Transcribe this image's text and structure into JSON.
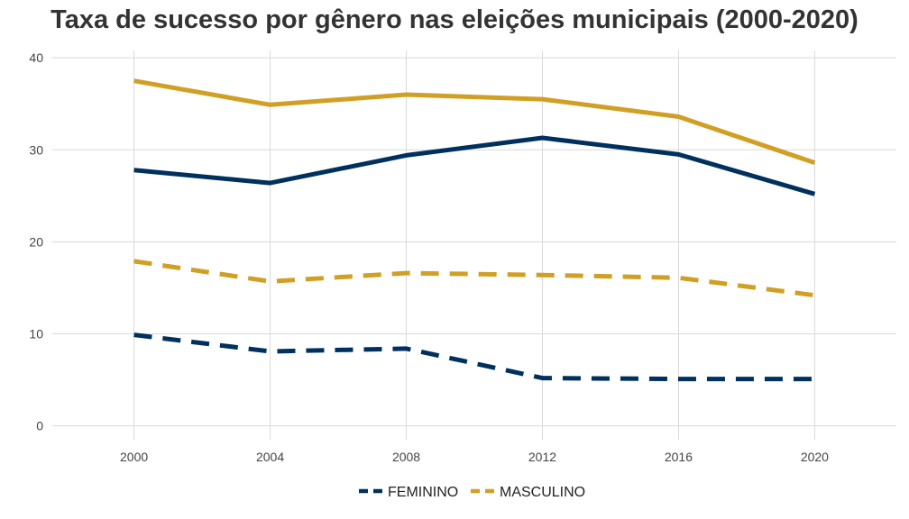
{
  "chart_data": {
    "type": "line",
    "title": "Taxa de sucesso por gênero nas eleições municipais (2000-2020)",
    "xlabel": "",
    "ylabel": "",
    "x": [
      2000,
      2004,
      2008,
      2012,
      2016,
      2020
    ],
    "x_tick_labels": [
      "2000",
      "2004",
      "2008",
      "2012",
      "2016",
      "2020"
    ],
    "xlim": [
      1997.6,
      2022.4
    ],
    "ylim": [
      -1.5,
      40.8
    ],
    "y_ticks": [
      0,
      10,
      20,
      30,
      40
    ],
    "y_tick_labels": [
      "0",
      "10",
      "20",
      "30",
      "40"
    ],
    "grid": true,
    "legend_position": "bottom",
    "series": [
      {
        "name": "FEMININO",
        "color": "#00305e",
        "dash": "solid",
        "values": [
          27.8,
          26.4,
          29.4,
          31.3,
          29.5,
          25.2
        ]
      },
      {
        "name": "MASCULINO",
        "color": "#d19f24",
        "dash": "solid",
        "values": [
          37.5,
          34.9,
          36.0,
          35.5,
          33.6,
          28.6
        ]
      },
      {
        "name": "FEMININO",
        "color": "#00305e",
        "dash": "dashed",
        "values": [
          9.9,
          8.1,
          8.4,
          5.2,
          5.1,
          5.1
        ]
      },
      {
        "name": "MASCULINO",
        "color": "#d19f24",
        "dash": "dashed",
        "values": [
          17.9,
          15.7,
          16.6,
          16.4,
          16.1,
          14.2
        ]
      }
    ],
    "legend": [
      {
        "label": "FEMININO",
        "color": "#00305e"
      },
      {
        "label": "MASCULINO",
        "color": "#d19f24"
      }
    ]
  }
}
